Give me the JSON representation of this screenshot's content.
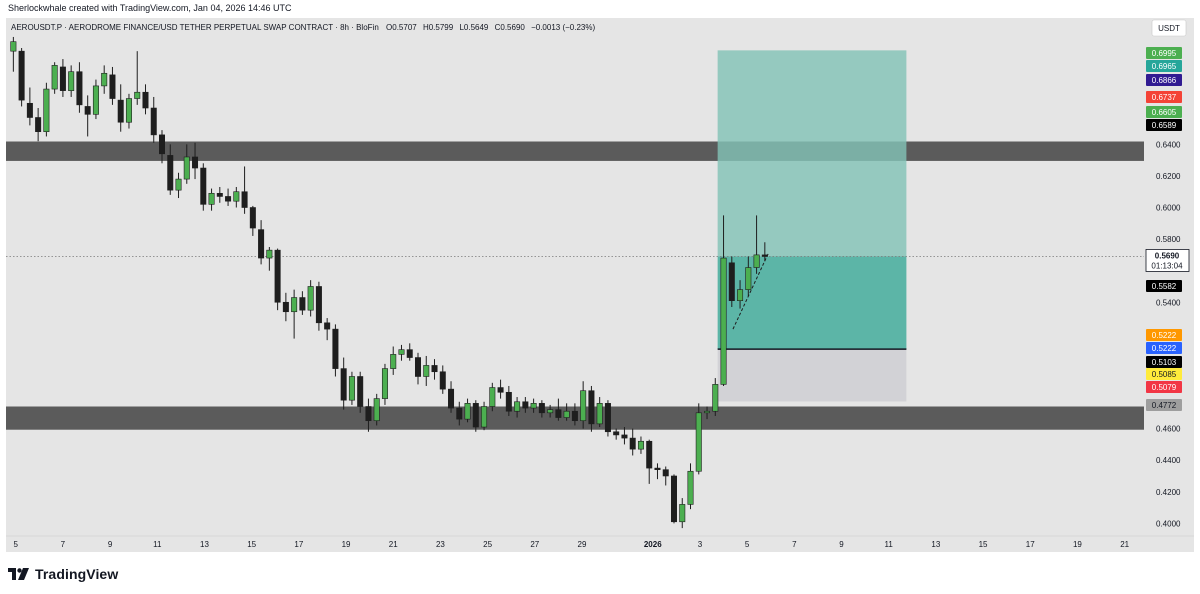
{
  "caption": "Sherlockwhale created with TradingView.com, Jan 04, 2026 14:46 UTC",
  "brand": {
    "name": "TradingView",
    "logo_icon": "tradingview-logo-icon"
  },
  "chart_data": {
    "type": "candlestick",
    "title": "AEROUSDT.P · AERODROME FINANCE/USD TETHER PERPETUAL SWAP CONTRACT · 8h · BloFin",
    "ohlc_label": {
      "o_key": "O",
      "o": "0.5707",
      "h_key": "H",
      "h": "0.5799",
      "l_key": "L",
      "l": "0.5649",
      "c_key": "C",
      "c": "0.5690",
      "change": "−0.0013 (−0.23%)"
    },
    "currency": "USDT",
    "ylim": [
      0.392,
      0.72
    ],
    "y_ticks": [
      "0.6400",
      "0.6200",
      "0.6000",
      "0.5800",
      "0.5400",
      "0.4600",
      "0.4400",
      "0.4200",
      "0.4000"
    ],
    "x_ticks": [
      "5",
      "7",
      "9",
      "11",
      "13",
      "15",
      "17",
      "19",
      "21",
      "23",
      "25",
      "27",
      "29",
      "2026",
      "3",
      "5",
      "7",
      "9",
      "11",
      "13",
      "15",
      "17",
      "19",
      "21"
    ],
    "x_range_days": [
      4.8,
      52.1
    ],
    "colors": {
      "up": "#4caf50",
      "down": "#1e1e1e",
      "background": "#e5e5e5",
      "zone": "#5b5b5b",
      "target": "#83c2b6",
      "profit": "#4cafa0",
      "stop": "#cfcfd4"
    },
    "zones": [
      {
        "label": "resistance",
        "low": 0.6295,
        "high": 0.6418
      },
      {
        "label": "support",
        "low": 0.4593,
        "high": 0.474
      }
    ],
    "position": {
      "start_day": 34.75,
      "end_day": 42.75,
      "entry": 0.5103,
      "target": 0.6995,
      "stop": 0.4772,
      "entry_line": 0.5103
    },
    "last_price": {
      "value": "0.5690",
      "countdown": "01:13:04",
      "value_num": 0.569
    },
    "price_tags": [
      {
        "value": "0.6995",
        "color": "#4caf50",
        "text_color": "#ffffff"
      },
      {
        "value": "0.6965",
        "color": "#26a69a",
        "text_color": "#ffffff"
      },
      {
        "value": "0.6866",
        "color": "#311b92",
        "text_color": "#ffffff"
      },
      {
        "value": "0.6737",
        "color": "#f44336",
        "text_color": "#ffffff"
      },
      {
        "value": "0.6605",
        "color": "#4caf50",
        "text_color": "#ffffff"
      },
      {
        "value": "0.6589",
        "color": "#000000",
        "text_color": "#ffffff"
      },
      {
        "value": "0.5582",
        "color": "#000000",
        "text_color": "#ffffff"
      },
      {
        "value": "0.5222",
        "color": "#ff9800",
        "text_color": "#ffffff"
      },
      {
        "value": "0.5222",
        "color": "#2962ff",
        "text_color": "#ffffff"
      },
      {
        "value": "0.5103",
        "color": "#000000",
        "text_color": "#ffffff"
      },
      {
        "value": "0.5085",
        "color": "#ffeb3b",
        "text_color": "#131722"
      },
      {
        "value": "0.5079",
        "color": "#f23645",
        "text_color": "#ffffff"
      },
      {
        "value": "0.4772",
        "color": "#9e9e9e",
        "text_color": "#131722"
      }
    ],
    "candles": [
      [
        4.9,
        0.699,
        0.708,
        0.686,
        0.705
      ],
      [
        5.25,
        0.699,
        0.701,
        0.664,
        0.668
      ],
      [
        5.6,
        0.666,
        0.676,
        0.652,
        0.657
      ],
      [
        5.95,
        0.657,
        0.663,
        0.642,
        0.648
      ],
      [
        6.3,
        0.648,
        0.679,
        0.645,
        0.675
      ],
      [
        6.65,
        0.675,
        0.692,
        0.672,
        0.69
      ],
      [
        7.0,
        0.689,
        0.694,
        0.67,
        0.674
      ],
      [
        7.35,
        0.674,
        0.69,
        0.67,
        0.686
      ],
      [
        7.7,
        0.686,
        0.692,
        0.66,
        0.665
      ],
      [
        8.05,
        0.664,
        0.671,
        0.645,
        0.659
      ],
      [
        8.4,
        0.659,
        0.681,
        0.656,
        0.677
      ],
      [
        8.75,
        0.677,
        0.69,
        0.672,
        0.685
      ],
      [
        9.1,
        0.684,
        0.689,
        0.665,
        0.669
      ],
      [
        9.45,
        0.668,
        0.678,
        0.648,
        0.654
      ],
      [
        9.8,
        0.654,
        0.672,
        0.65,
        0.669
      ],
      [
        10.15,
        0.669,
        0.699,
        0.665,
        0.673
      ],
      [
        10.5,
        0.673,
        0.678,
        0.659,
        0.663
      ],
      [
        10.85,
        0.663,
        0.67,
        0.641,
        0.646
      ],
      [
        11.2,
        0.646,
        0.649,
        0.628,
        0.634
      ],
      [
        11.55,
        0.633,
        0.64,
        0.608,
        0.611
      ],
      [
        11.9,
        0.611,
        0.622,
        0.606,
        0.618
      ],
      [
        12.25,
        0.618,
        0.64,
        0.615,
        0.632
      ],
      [
        12.6,
        0.632,
        0.641,
        0.618,
        0.625
      ],
      [
        12.95,
        0.625,
        0.628,
        0.598,
        0.602
      ],
      [
        13.3,
        0.602,
        0.612,
        0.598,
        0.609
      ],
      [
        13.65,
        0.609,
        0.613,
        0.603,
        0.607
      ],
      [
        14.0,
        0.607,
        0.612,
        0.601,
        0.604
      ],
      [
        14.35,
        0.604,
        0.613,
        0.6,
        0.61
      ],
      [
        14.7,
        0.61,
        0.626,
        0.596,
        0.6
      ],
      [
        15.05,
        0.6,
        0.601,
        0.582,
        0.587
      ],
      [
        15.4,
        0.586,
        0.592,
        0.564,
        0.568
      ],
      [
        15.75,
        0.568,
        0.575,
        0.56,
        0.573
      ],
      [
        16.1,
        0.573,
        0.574,
        0.535,
        0.54
      ],
      [
        16.45,
        0.54,
        0.546,
        0.528,
        0.534
      ],
      [
        16.8,
        0.534,
        0.548,
        0.517,
        0.543
      ],
      [
        17.15,
        0.543,
        0.547,
        0.532,
        0.535
      ],
      [
        17.5,
        0.535,
        0.554,
        0.531,
        0.55
      ],
      [
        17.85,
        0.55,
        0.553,
        0.522,
        0.527
      ],
      [
        18.2,
        0.527,
        0.53,
        0.516,
        0.523
      ],
      [
        18.55,
        0.523,
        0.526,
        0.493,
        0.498
      ],
      [
        18.9,
        0.498,
        0.505,
        0.472,
        0.478
      ],
      [
        19.25,
        0.478,
        0.496,
        0.475,
        0.493
      ],
      [
        19.6,
        0.493,
        0.496,
        0.47,
        0.474
      ],
      [
        19.95,
        0.474,
        0.479,
        0.458,
        0.465
      ],
      [
        20.3,
        0.465,
        0.482,
        0.462,
        0.479
      ],
      [
        20.65,
        0.479,
        0.501,
        0.475,
        0.498
      ],
      [
        21.0,
        0.498,
        0.512,
        0.494,
        0.507
      ],
      [
        21.35,
        0.507,
        0.513,
        0.503,
        0.51
      ],
      [
        21.7,
        0.51,
        0.514,
        0.503,
        0.505
      ],
      [
        22.05,
        0.505,
        0.508,
        0.488,
        0.493
      ],
      [
        22.4,
        0.493,
        0.506,
        0.487,
        0.5
      ],
      [
        22.75,
        0.5,
        0.504,
        0.491,
        0.496
      ],
      [
        23.1,
        0.496,
        0.5,
        0.482,
        0.485
      ],
      [
        23.45,
        0.485,
        0.49,
        0.47,
        0.473
      ],
      [
        23.8,
        0.473,
        0.477,
        0.462,
        0.466
      ],
      [
        24.15,
        0.466,
        0.479,
        0.464,
        0.476
      ],
      [
        24.5,
        0.476,
        0.478,
        0.458,
        0.461
      ],
      [
        24.85,
        0.461,
        0.477,
        0.459,
        0.474
      ],
      [
        25.2,
        0.474,
        0.489,
        0.471,
        0.486
      ],
      [
        25.55,
        0.486,
        0.491,
        0.479,
        0.483
      ],
      [
        25.9,
        0.483,
        0.487,
        0.468,
        0.471
      ],
      [
        26.25,
        0.471,
        0.48,
        0.467,
        0.477
      ],
      [
        26.6,
        0.477,
        0.48,
        0.47,
        0.473
      ],
      [
        26.95,
        0.473,
        0.479,
        0.47,
        0.476
      ],
      [
        27.3,
        0.476,
        0.478,
        0.467,
        0.47
      ],
      [
        27.65,
        0.47,
        0.475,
        0.467,
        0.472
      ],
      [
        28.0,
        0.472,
        0.479,
        0.465,
        0.467
      ],
      [
        28.35,
        0.467,
        0.476,
        0.465,
        0.471
      ],
      [
        28.7,
        0.471,
        0.476,
        0.462,
        0.465
      ],
      [
        29.05,
        0.465,
        0.49,
        0.46,
        0.484
      ],
      [
        29.4,
        0.484,
        0.487,
        0.458,
        0.463
      ],
      [
        29.75,
        0.463,
        0.48,
        0.461,
        0.476
      ],
      [
        30.1,
        0.476,
        0.478,
        0.455,
        0.458
      ],
      [
        30.45,
        0.458,
        0.46,
        0.453,
        0.456
      ],
      [
        30.8,
        0.456,
        0.461,
        0.45,
        0.454
      ],
      [
        31.15,
        0.454,
        0.46,
        0.443,
        0.447
      ],
      [
        31.5,
        0.447,
        0.455,
        0.444,
        0.452
      ],
      [
        31.85,
        0.452,
        0.453,
        0.425,
        0.435
      ],
      [
        32.2,
        0.435,
        0.438,
        0.428,
        0.434
      ],
      [
        32.55,
        0.434,
        0.436,
        0.424,
        0.43
      ],
      [
        32.9,
        0.43,
        0.431,
        0.4,
        0.401
      ],
      [
        33.25,
        0.401,
        0.416,
        0.397,
        0.412
      ],
      [
        33.6,
        0.412,
        0.438,
        0.409,
        0.433
      ],
      [
        33.95,
        0.433,
        0.476,
        0.431,
        0.47
      ],
      [
        34.3,
        0.47,
        0.474,
        0.466,
        0.471
      ],
      [
        34.65,
        0.471,
        0.492,
        0.468,
        0.488
      ],
      [
        35.0,
        0.488,
        0.595,
        0.487,
        0.568
      ],
      [
        35.35,
        0.565,
        0.569,
        0.537,
        0.541
      ],
      [
        35.7,
        0.541,
        0.554,
        0.536,
        0.548
      ],
      [
        36.05,
        0.548,
        0.569,
        0.544,
        0.562
      ],
      [
        36.4,
        0.562,
        0.595,
        0.558,
        0.57
      ],
      [
        36.75,
        0.57,
        0.578,
        0.566,
        0.569
      ]
    ]
  }
}
